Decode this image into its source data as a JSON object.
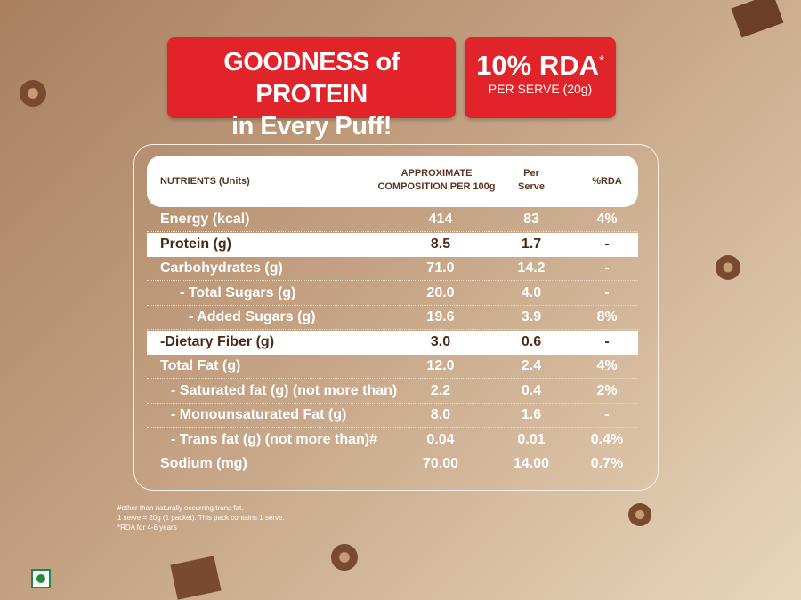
{
  "header": {
    "title_line1": "GOODNESS of PROTEIN",
    "title_line2": "in Every Puff!",
    "rda": "10% RDA",
    "rda_mark": "*",
    "serve": "PER SERVE (20g)"
  },
  "table": {
    "columns": [
      "NUTRIENTS (Units)",
      [
        "APPROXIMATE",
        "COMPOSITION PER 100g"
      ],
      [
        "Per",
        "Serve"
      ],
      "%RDA"
    ],
    "rows": [
      [
        "Energy (kcal)",
        "414",
        "83",
        "4%"
      ],
      [
        "Protein (g)",
        "8.5",
        "1.7",
        "-"
      ],
      [
        "Carbohydrates (g)",
        "71.0",
        "14.2",
        "-"
      ],
      [
        "- Total Sugars (g)",
        "20.0",
        "4.0",
        "-"
      ],
      [
        "- Added Sugars (g)",
        "19.6",
        "3.9",
        "8%"
      ],
      [
        "-Dietary Fiber (g)",
        "3.0",
        "0.6",
        "-"
      ],
      [
        "Total Fat (g)",
        "12.0",
        "2.4",
        "4%"
      ],
      [
        "- Saturated fat (g) (not more than)",
        "2.2",
        "0.4",
        "2%"
      ],
      [
        "- Monounsaturated Fat (g)",
        "8.0",
        "1.6",
        "-"
      ],
      [
        "- Trans fat (g) (not more than)#",
        "0.04",
        "0.01",
        "0.4%"
      ],
      [
        "Sodium (mg)",
        "70.00",
        "14.00",
        "0.7%"
      ]
    ]
  },
  "footnotes": [
    "#other than naturally occurring trans fat.",
    "1 serve = 20g (1 packet). This pack contains 1 serve.",
    "*RDA for 4-6 years"
  ]
}
